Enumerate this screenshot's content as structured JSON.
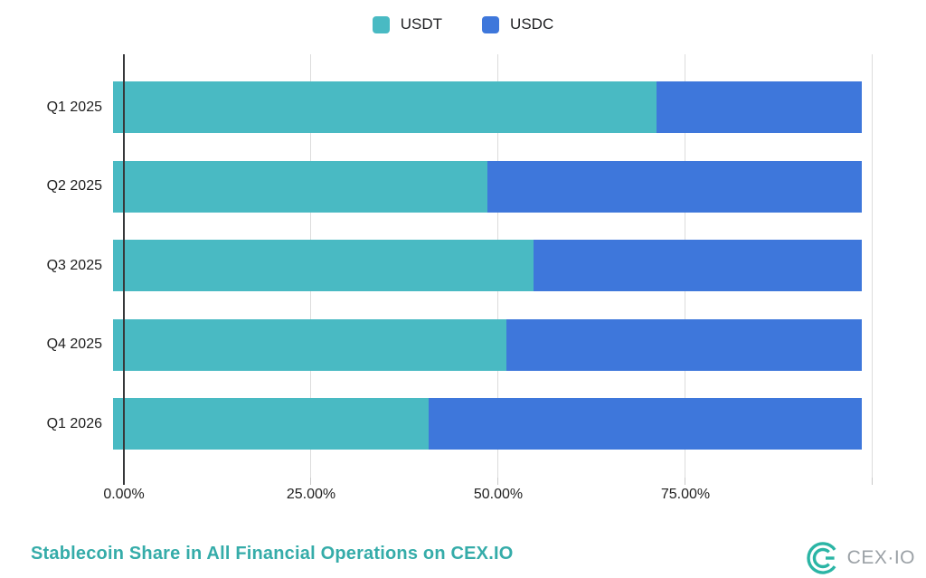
{
  "title": "Stablecoin Share in All Financial Operations on CEX.IO",
  "legend": [
    {
      "label": "USDT",
      "color": "#49bac3"
    },
    {
      "label": "USDC",
      "color": "#3e77db"
    }
  ],
  "chart_data": {
    "type": "bar",
    "orientation": "horizontal",
    "stacked": true,
    "categories": [
      "Q1 2025",
      "Q2 2025",
      "Q3 2025",
      "Q4 2025",
      "Q1 2026"
    ],
    "series": [
      {
        "name": "USDT",
        "color": "#49bac3",
        "values": [
          72.6,
          50.0,
          56.1,
          52.5,
          42.2
        ]
      },
      {
        "name": "USDC",
        "color": "#3e77db",
        "values": [
          27.4,
          50.0,
          43.9,
          47.5,
          57.8
        ]
      }
    ],
    "value_unit": "%",
    "xlim": [
      0,
      100
    ],
    "x_ticks": [
      {
        "label": "0.00%",
        "value": 0
      },
      {
        "label": "25.00%",
        "value": 25
      },
      {
        "label": "50.00%",
        "value": 50
      },
      {
        "label": "75.00%",
        "value": 75
      },
      {
        "label": "",
        "value": 100
      }
    ],
    "grid": "vertical",
    "legend_position": "top-center",
    "title": "Stablecoin Share in All Financial Operations on CEX.IO"
  },
  "branding": {
    "logo_text": "CEX·IO"
  },
  "colors": {
    "usdt": "#49bac3",
    "usdc": "#3e77db",
    "title": "#35aca9",
    "axis": "#37383a",
    "gridline": "#dcdcdc",
    "tick": "#c9c9c9",
    "label": "#1f1f1f",
    "logo_mark": "#2bb5a5",
    "logo_text": "#9ba1a6"
  }
}
